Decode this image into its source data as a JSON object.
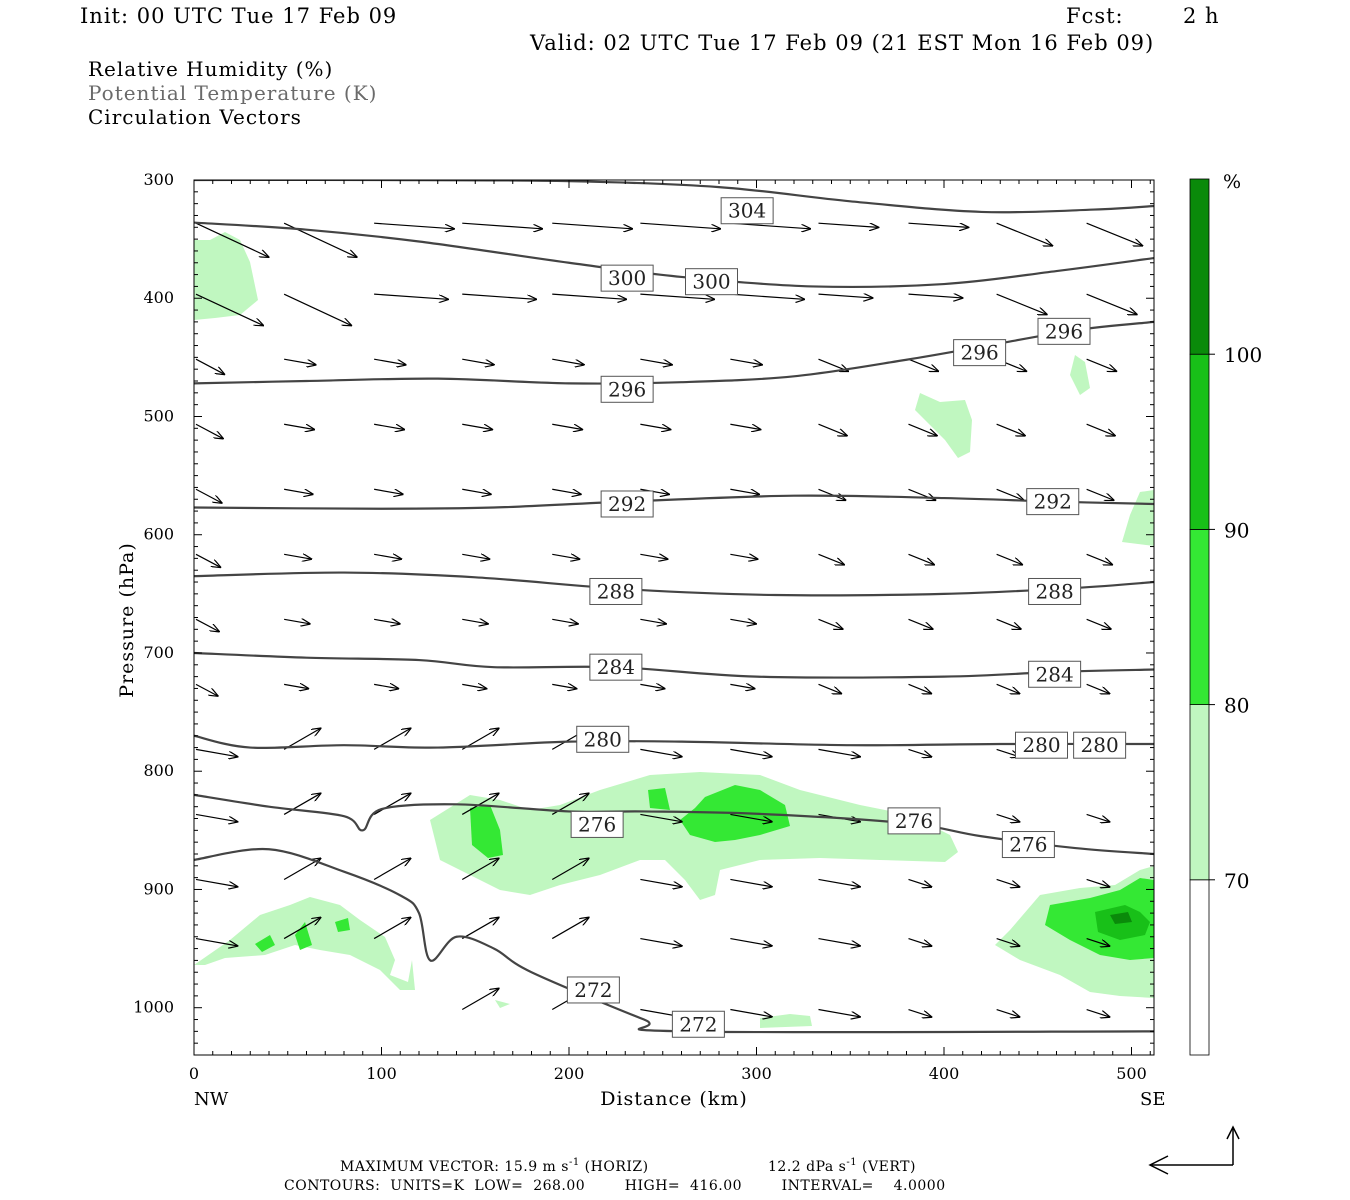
{
  "header": {
    "init": "Init: 00 UTC Tue 17 Feb 09",
    "fcst_label": "Fcst:",
    "fcst_value": "2 h",
    "valid": "Valid: 02 UTC Tue 17 Feb 09 (21 EST Mon 16 Feb 09)"
  },
  "legend_lines": {
    "rh": "Relative Humidity (%)",
    "theta": "Potential Temperature (K)",
    "vectors": "Circulation Vectors"
  },
  "footer": {
    "max_vector": "MAXIMUM VECTOR:  15.9 m s",
    "max_vector_exp": "-1",
    "horiz": " (HORIZ)",
    "vert_val": "12.2 dPa s",
    "vert_exp": "-1",
    "vert": " (VERT)",
    "contours": "CONTOURS:  UNITS=K  LOW=  268.00        HIGH=  416.00        INTERVAL=    4.0000"
  },
  "chart_data": {
    "type": "cross-section",
    "xlabel": "Distance (km)",
    "ylabel": "Pressure (hPa)",
    "xlim": [
      0,
      512
    ],
    "ylim": [
      1040,
      300
    ],
    "x_ticks": [
      0,
      100,
      200,
      300,
      400,
      500
    ],
    "y_ticks": [
      300,
      400,
      500,
      600,
      700,
      800,
      900,
      1000
    ],
    "x_end_labels": {
      "left": "NW",
      "right": "SE"
    },
    "colorbar": {
      "unit": "%",
      "levels": [
        70,
        80,
        90,
        100
      ],
      "colors": [
        "#ffffff",
        "#c0f7c0",
        "#34e834",
        "#18c018",
        "#0a8a0a"
      ]
    },
    "colors": {
      "contour": "#444444",
      "rh70": "#c0f7c0",
      "rh80": "#34e834",
      "rh90": "#18c018"
    },
    "theta_contours": [
      {
        "value": 304,
        "points": [
          [
            0,
            300
          ],
          [
            100,
            300
          ],
          [
            200,
            301
          ],
          [
            280,
            306
          ],
          [
            350,
            318
          ],
          [
            420,
            327
          ],
          [
            480,
            325
          ],
          [
            512,
            322
          ]
        ],
        "labels": [
          [
            295,
            326
          ]
        ]
      },
      {
        "value": 300,
        "points": [
          [
            0,
            336
          ],
          [
            60,
            342
          ],
          [
            120,
            352
          ],
          [
            200,
            370
          ],
          [
            260,
            382
          ],
          [
            330,
            390
          ],
          [
            400,
            388
          ],
          [
            460,
            377
          ],
          [
            512,
            366
          ]
        ],
        "labels": [
          [
            231,
            383
          ],
          [
            276,
            386
          ]
        ]
      },
      {
        "value": 296,
        "points": [
          [
            0,
            472
          ],
          [
            60,
            470
          ],
          [
            130,
            468
          ],
          [
            200,
            472
          ],
          [
            260,
            471
          ],
          [
            320,
            466
          ],
          [
            380,
            452
          ],
          [
            420,
            441
          ],
          [
            470,
            427
          ],
          [
            512,
            420
          ]
        ],
        "labels": [
          [
            231,
            477
          ],
          [
            419,
            446
          ],
          [
            464,
            428
          ]
        ]
      },
      {
        "value": 292,
        "points": [
          [
            0,
            577
          ],
          [
            100,
            578
          ],
          [
            160,
            577
          ],
          [
            230,
            572
          ],
          [
            320,
            567
          ],
          [
            400,
            569
          ],
          [
            460,
            572
          ],
          [
            512,
            574
          ]
        ],
        "labels": [
          [
            231,
            574
          ],
          [
            458,
            572
          ]
        ]
      },
      {
        "value": 288,
        "points": [
          [
            0,
            635
          ],
          [
            80,
            632
          ],
          [
            150,
            636
          ],
          [
            230,
            646
          ],
          [
            310,
            651
          ],
          [
            400,
            650
          ],
          [
            470,
            645
          ],
          [
            512,
            640
          ]
        ],
        "labels": [
          [
            225,
            648
          ],
          [
            459,
            648
          ]
        ]
      },
      {
        "value": 284,
        "points": [
          [
            0,
            700
          ],
          [
            60,
            704
          ],
          [
            120,
            706
          ],
          [
            160,
            712
          ],
          [
            225,
            712
          ],
          [
            300,
            720
          ],
          [
            400,
            720
          ],
          [
            460,
            716
          ],
          [
            512,
            714
          ]
        ],
        "labels": [
          [
            225,
            712
          ],
          [
            459,
            718
          ]
        ]
      },
      {
        "value": 280,
        "points": [
          [
            0,
            770
          ],
          [
            30,
            780
          ],
          [
            80,
            778
          ],
          [
            130,
            780
          ],
          [
            200,
            775
          ],
          [
            260,
            775
          ],
          [
            350,
            778
          ],
          [
            430,
            777
          ],
          [
            512,
            777
          ]
        ],
        "labels": [
          [
            218,
            773
          ],
          [
            452,
            778
          ],
          [
            483,
            778
          ]
        ]
      },
      {
        "value": 276,
        "points": [
          [
            0,
            820
          ],
          [
            40,
            830
          ],
          [
            80,
            838
          ],
          [
            90,
            850
          ],
          [
            100,
            832
          ],
          [
            140,
            828
          ],
          [
            200,
            834
          ],
          [
            240,
            834
          ],
          [
            300,
            836
          ],
          [
            380,
            844
          ],
          [
            420,
            855
          ],
          [
            470,
            865
          ],
          [
            512,
            870
          ]
        ],
        "labels": [
          [
            215,
            845
          ],
          [
            384,
            842
          ],
          [
            445,
            862
          ]
        ]
      },
      {
        "value": 272,
        "points": [
          [
            0,
            875
          ],
          [
            40,
            866
          ],
          [
            80,
            885
          ],
          [
            110,
            905
          ],
          [
            120,
            920
          ],
          [
            126,
            960
          ],
          [
            140,
            940
          ],
          [
            160,
            950
          ],
          [
            180,
            970
          ],
          [
            240,
            1010
          ],
          [
            260,
            1020
          ],
          [
            512,
            1020
          ]
        ],
        "labels": [
          [
            213,
            985
          ],
          [
            269,
            1014
          ]
        ]
      }
    ],
    "vector_note": "Circulation vectors point predominantly toward the southeast (left to right and slightly downward)."
  }
}
